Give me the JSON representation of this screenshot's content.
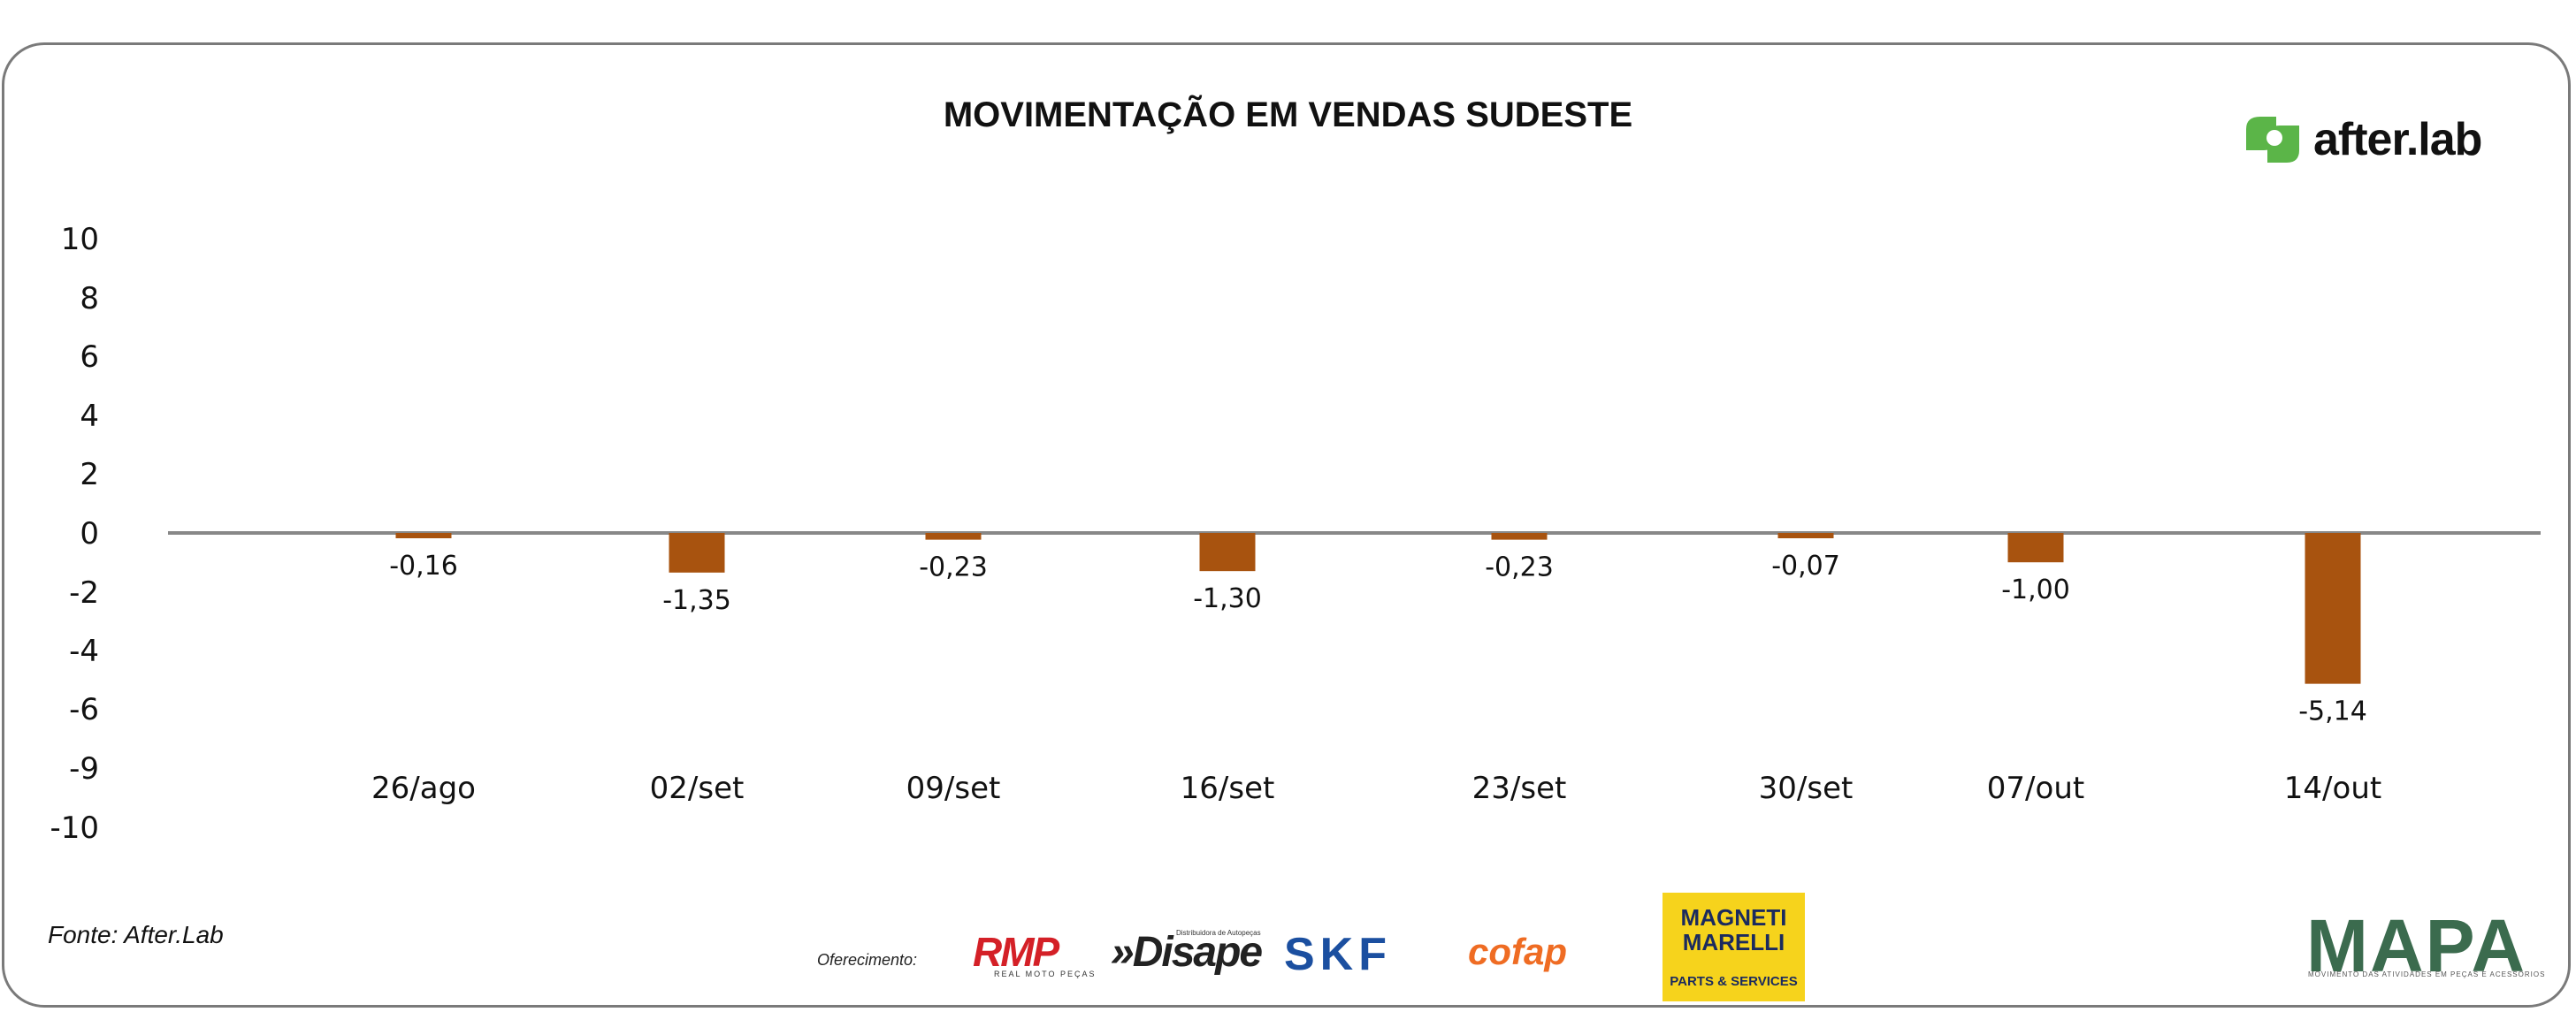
{
  "chart_data": {
    "type": "bar",
    "title": "MOVIMENTAÇÃO EM VENDAS SUDESTE",
    "categories": [
      "26/ago",
      "02/set",
      "09/set",
      "16/set",
      "23/set",
      "30/set",
      "07/out",
      "14/out"
    ],
    "values": [
      -0.16,
      -1.35,
      -0.23,
      -1.3,
      -0.23,
      -0.07,
      -1.0,
      -5.14
    ],
    "value_labels": [
      "-0,16",
      "-1,35",
      "-0,23",
      "-1,30",
      "-0,23",
      "-0,07",
      "-1,00",
      "-5,14"
    ],
    "y_ticks": [
      10,
      8,
      6,
      4,
      2,
      0,
      -2,
      -4,
      -6,
      -9,
      -10
    ],
    "y_tick_labels": [
      "10",
      "8",
      "6",
      "4",
      "2",
      "0",
      "-2",
      "-4",
      "-6",
      "-9",
      "-10"
    ],
    "ylim": [
      -10,
      10
    ],
    "xlabel": "",
    "ylabel": "",
    "grid": false,
    "legend": "none",
    "bar_color": "#a8530f",
    "zero_line_color": "#888888"
  },
  "brand": {
    "name": "after.lab",
    "icon": "after-lab-logo-icon",
    "icon_color": "#5bb548"
  },
  "source": "Fonte: After.Lab",
  "sponsors": {
    "label": "Oferecimento:",
    "rmp": "RMP",
    "rmp_sub": "REAL MOTO PEÇAS",
    "disape": "»Disape",
    "disape_sub": "Distribuidora de Autopeças",
    "skf": "SKF",
    "cofap": "cofap",
    "magneti_line1": "MAGNETI",
    "magneti_line2": "MARELLI",
    "magneti_sub": "PARTS & SERVICES"
  },
  "mapa": {
    "name": "MAPA",
    "tagline": "MOVIMENTO DAS ATIVIDADES EM PEÇAS E ACESSÓRIOS"
  }
}
